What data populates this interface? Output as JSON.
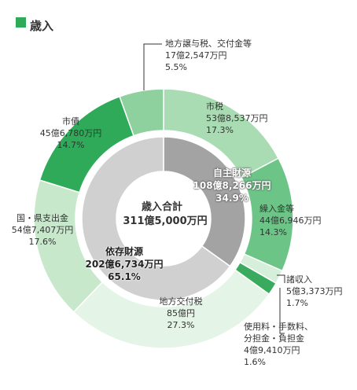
{
  "chart_data": [
    {
      "type": "donut",
      "title": "歳入",
      "categories": [
        "市税",
        "繰入金等",
        "諸収入",
        "使用料・手数料、\n分担金・負担金",
        "地方交付税",
        "国・県支出金",
        "市債",
        "地方譲与税、交付金等"
      ],
      "amounts": [
        "53億8,537万円",
        "44億6,946万円",
        "5億3,373万円",
        "4億9,410万円",
        "85億円",
        "54億7,407万円",
        "45億6,780万円",
        "17億2,547万円"
      ],
      "values": [
        17.3,
        14.3,
        1.7,
        1.6,
        27.3,
        17.6,
        14.7,
        5.5
      ],
      "value_labels": [
        "17.3%",
        "14.3%",
        "1.7%",
        "1.6%",
        "27.3%",
        "17.6%",
        "14.7%",
        "5.5%"
      ],
      "colors": [
        "#a9dcb2",
        "#6cc487",
        "#d6efda",
        "#3aaa5e",
        "#e4f4e6",
        "#c8e8cc",
        "#2eaa58",
        "#8ed19e"
      ]
    },
    {
      "type": "donut",
      "title": "歳入合計",
      "subtitle": "311億5,000万円",
      "categories": [
        "自主財源",
        "依存財源"
      ],
      "amounts": [
        "108億8,266万円",
        "202億6,734万円"
      ],
      "values": [
        34.9,
        65.1
      ],
      "value_labels": [
        "34.9%",
        "65.1%"
      ],
      "colors": [
        "#a3a3a3",
        "#d0d0d0"
      ]
    }
  ]
}
